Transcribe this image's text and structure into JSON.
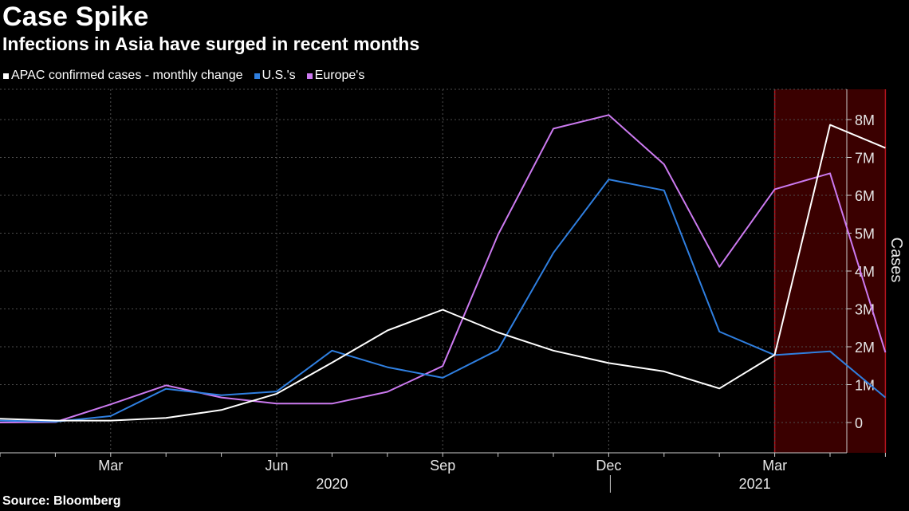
{
  "title": "Case Spike",
  "subtitle": "Infections in Asia have surged in recent months",
  "source": "Source: Bloomberg",
  "colors": {
    "background": "#000000",
    "apac": "#ffffff",
    "us": "#2f7fe0",
    "europe": "#cc7af0",
    "highlight_fill": "#3a0000",
    "highlight_border": "#b4141e",
    "grid": "#4d4d4d"
  },
  "chart_data": {
    "type": "line",
    "title": "Case Spike",
    "subtitle": "Infections in Asia have surged in recent months",
    "ylabel": "Cases",
    "xlabel": "",
    "ylim": [
      -800000,
      8800000
    ],
    "y_ticks": [
      0,
      1000000,
      2000000,
      3000000,
      4000000,
      5000000,
      6000000,
      7000000,
      8000000
    ],
    "y_tick_labels": [
      "0",
      "1M",
      "2M",
      "3M",
      "4M",
      "5M",
      "6M",
      "7M",
      "8M"
    ],
    "x_ticks": [
      "2020-03",
      "2020-06",
      "2020-09",
      "2020-12",
      "2021-03"
    ],
    "x_tick_labels": [
      "Mar",
      "Jun",
      "Sep",
      "Dec",
      "Mar"
    ],
    "year_labels": [
      {
        "label": "2020",
        "at": "2020-07"
      },
      {
        "label": "2021",
        "at": "2021-03"
      }
    ],
    "grid": true,
    "legend_position": "top-left",
    "highlight_range": [
      "2021-03",
      "2021-05"
    ],
    "x": [
      "2020-01",
      "2020-02",
      "2020-03",
      "2020-04",
      "2020-05",
      "2020-06",
      "2020-07",
      "2020-08",
      "2020-09",
      "2020-10",
      "2020-11",
      "2020-12",
      "2021-01",
      "2021-02",
      "2021-03",
      "2021-04",
      "2021-05"
    ],
    "series": [
      {
        "name": "APAC confirmed cases - monthly change",
        "color": "#ffffff",
        "values": [
          100000,
          50000,
          50000,
          120000,
          330000,
          760000,
          1580000,
          2430000,
          2980000,
          2380000,
          1900000,
          1570000,
          1350000,
          900000,
          1790000,
          7860000,
          7250000
        ]
      },
      {
        "name": "U.S.'s",
        "color": "#2f7fe0",
        "values": [
          50000,
          20000,
          170000,
          890000,
          720000,
          820000,
          1900000,
          1460000,
          1180000,
          1920000,
          4480000,
          6420000,
          6130000,
          2400000,
          1780000,
          1880000,
          660000
        ]
      },
      {
        "name": "Europe's",
        "color": "#cc7af0",
        "values": [
          0,
          10000,
          480000,
          980000,
          660000,
          500000,
          500000,
          810000,
          1490000,
          4960000,
          7760000,
          8120000,
          6820000,
          4110000,
          6160000,
          6580000,
          1850000
        ]
      }
    ]
  }
}
